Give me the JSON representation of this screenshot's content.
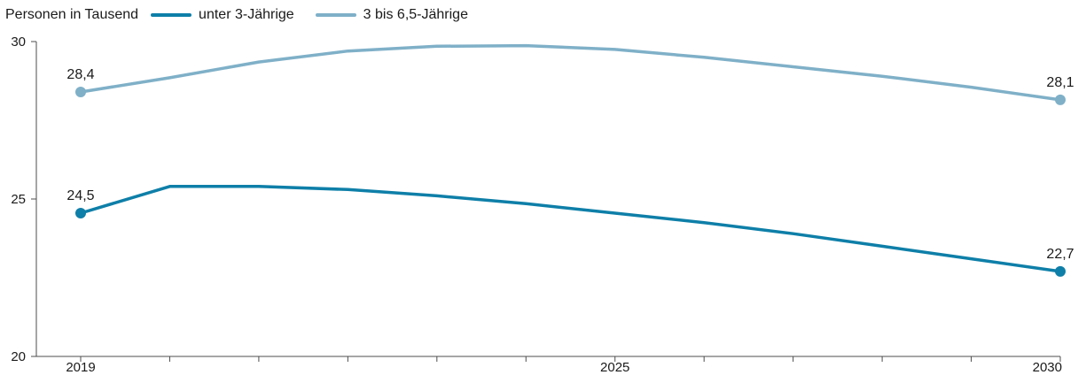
{
  "chart_data": {
    "type": "line",
    "unit_label": "Personen in Tausend",
    "x": [
      2019,
      2020,
      2021,
      2022,
      2023,
      2024,
      2025,
      2026,
      2027,
      2028,
      2029,
      2030
    ],
    "x_tick_labels": [
      "2019",
      "2025",
      "2030"
    ],
    "y_ticks": [
      20,
      25,
      30
    ],
    "ylim": [
      20,
      30
    ],
    "grid": false,
    "legend_position": "top-left",
    "series": [
      {
        "name": "unter 3-Jährige",
        "color": "#0e7fa8",
        "values": [
          24.55,
          25.4,
          25.4,
          25.3,
          25.1,
          24.85,
          24.55,
          24.25,
          23.9,
          23.5,
          23.1,
          22.7
        ],
        "end_labels": [
          "24,5",
          "22,7"
        ]
      },
      {
        "name": "3 bis 6,5-Jährige",
        "color": "#7fb0c8",
        "values": [
          28.4,
          28.85,
          29.35,
          29.7,
          29.85,
          29.87,
          29.75,
          29.5,
          29.2,
          28.9,
          28.55,
          28.15
        ],
        "end_labels": [
          "28,4",
          "28,1"
        ]
      }
    ]
  }
}
